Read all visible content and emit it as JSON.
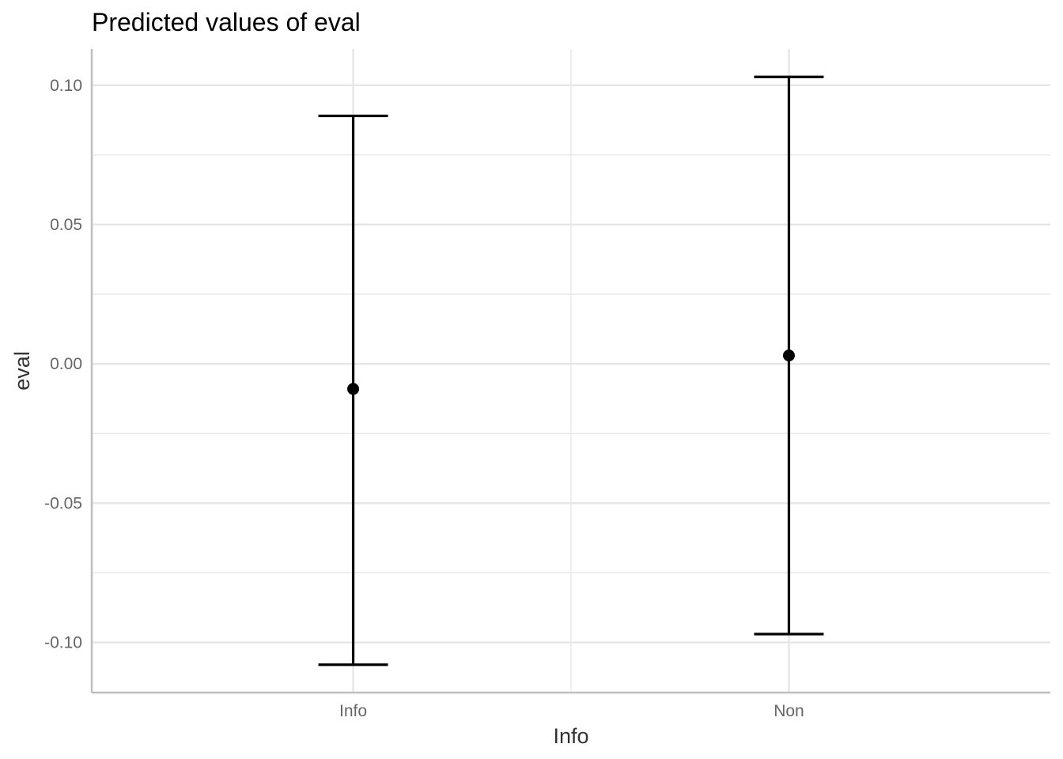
{
  "chart_data": {
    "type": "scatter",
    "title": "Predicted values of eval",
    "xlabel": "Info",
    "ylabel": "eval",
    "categories": [
      "Info",
      "Non"
    ],
    "values": [
      -0.009,
      0.003
    ],
    "ci_low": [
      -0.108,
      -0.097
    ],
    "ci_high": [
      0.089,
      0.103
    ],
    "y_ticks": [
      0.1,
      0.05,
      0.0,
      -0.05,
      -0.1
    ],
    "y_tick_labels": [
      "0.10",
      "0.05",
      "0.00",
      "-0.05",
      "-0.10"
    ],
    "ylim": [
      -0.118,
      0.113
    ],
    "grid": true,
    "colors": {
      "point": "#000000",
      "errorbar": "#000000",
      "grid": "#e6e6e6",
      "axis": "#bfbfbf"
    }
  }
}
